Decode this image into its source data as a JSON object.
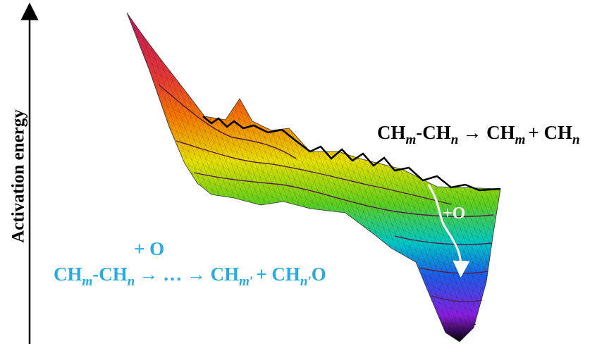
{
  "axis_label": "Activation energy",
  "reaction_top": [
    "CH",
    "m",
    "-CH",
    "n",
    "→ CH",
    "m",
    "+ CH",
    "n"
  ],
  "surface_label": "+O",
  "reaction_bottom": {
    "condition": "+ O",
    "parts": [
      "CH",
      "m",
      "-CH",
      "n",
      "→ … → CH",
      "m′",
      "+ CH",
      "n′",
      "O"
    ]
  }
}
